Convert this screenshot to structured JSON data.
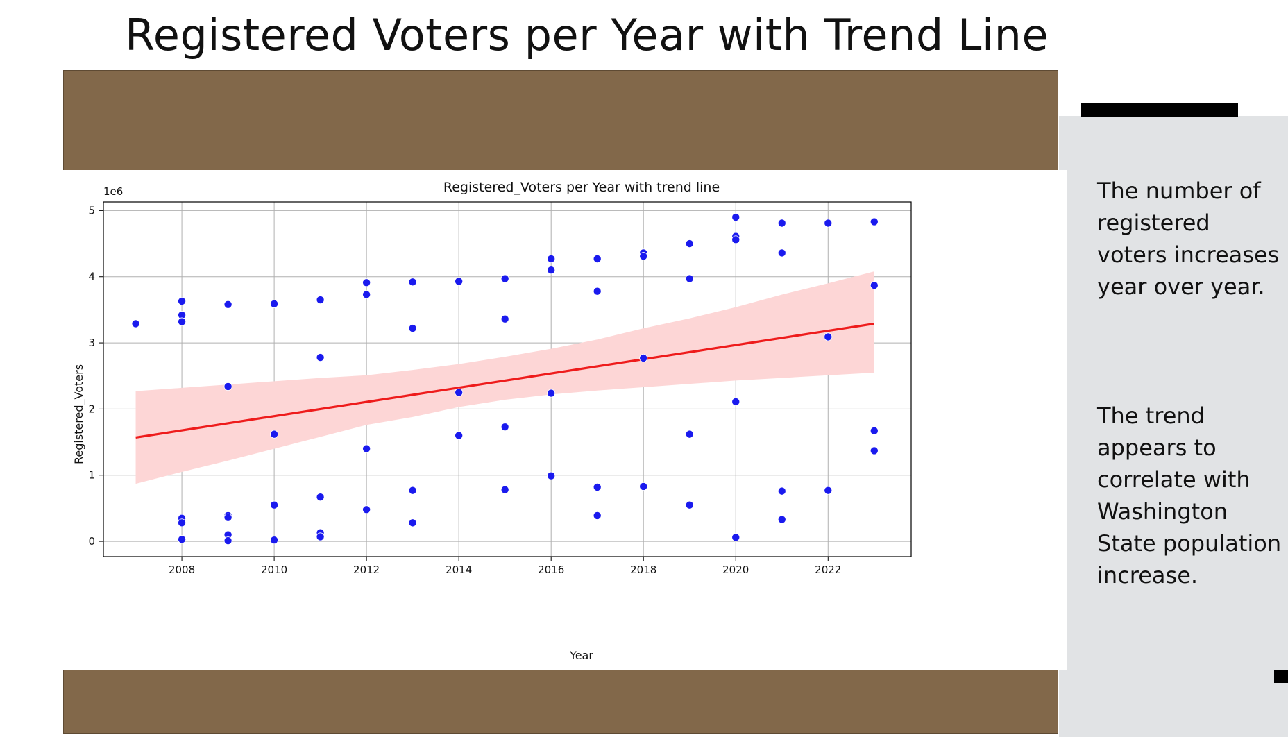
{
  "slide": {
    "title": "Registered Voters per Year with Trend Line",
    "description_1": "The number of registered voters increases year over year.",
    "description_2": "The trend appears to correlate with Washington State population increase."
  },
  "colors": {
    "frame": "#82684a",
    "side_panel": "#e1e3e5",
    "points": "#1a1aee",
    "trend_line": "#ee1c1c",
    "confidence_band": "#fdd6d6"
  },
  "chart_data": {
    "type": "scatter",
    "title": "Registered_Voters per Year with trend line",
    "xlabel": "Year",
    "ylabel": "Registered_Voters",
    "y_scale_label": "1e6",
    "xlim": [
      2006.3,
      2023.8
    ],
    "ylim": [
      -0.23,
      5.13
    ],
    "xticks": [
      2008,
      2010,
      2012,
      2014,
      2016,
      2018,
      2020,
      2022
    ],
    "yticks": [
      0,
      1,
      2,
      3,
      4,
      5
    ],
    "grid": true,
    "series": [
      {
        "name": "Registered_Voters",
        "points": [
          [
            2007,
            3.29
          ],
          [
            2008,
            3.63
          ],
          [
            2008,
            3.42
          ],
          [
            2008,
            3.32
          ],
          [
            2008,
            0.35
          ],
          [
            2008,
            0.28
          ],
          [
            2008,
            0.03
          ],
          [
            2009,
            3.58
          ],
          [
            2009,
            2.34
          ],
          [
            2009,
            0.39
          ],
          [
            2009,
            0.36
          ],
          [
            2009,
            0.1
          ],
          [
            2009,
            0.01
          ],
          [
            2010,
            3.59
          ],
          [
            2010,
            1.62
          ],
          [
            2010,
            0.55
          ],
          [
            2010,
            0.02
          ],
          [
            2011,
            3.65
          ],
          [
            2011,
            2.78
          ],
          [
            2011,
            0.67
          ],
          [
            2011,
            0.13
          ],
          [
            2011,
            0.07
          ],
          [
            2012,
            3.91
          ],
          [
            2012,
            3.73
          ],
          [
            2012,
            1.4
          ],
          [
            2012,
            0.48
          ],
          [
            2013,
            3.92
          ],
          [
            2013,
            3.22
          ],
          [
            2013,
            0.77
          ],
          [
            2013,
            0.28
          ],
          [
            2014,
            3.93
          ],
          [
            2014,
            2.25
          ],
          [
            2014,
            1.6
          ],
          [
            2015,
            3.97
          ],
          [
            2015,
            3.36
          ],
          [
            2015,
            1.73
          ],
          [
            2015,
            0.78
          ],
          [
            2016,
            4.27
          ],
          [
            2016,
            4.1
          ],
          [
            2016,
            2.24
          ],
          [
            2016,
            0.99
          ],
          [
            2017,
            4.27
          ],
          [
            2017,
            3.78
          ],
          [
            2017,
            0.82
          ],
          [
            2017,
            0.39
          ],
          [
            2018,
            4.36
          ],
          [
            2018,
            4.31
          ],
          [
            2018,
            2.77
          ],
          [
            2018,
            0.83
          ],
          [
            2019,
            4.5
          ],
          [
            2019,
            3.97
          ],
          [
            2019,
            1.62
          ],
          [
            2019,
            0.55
          ],
          [
            2020,
            4.9
          ],
          [
            2020,
            4.61
          ],
          [
            2020,
            4.56
          ],
          [
            2020,
            2.11
          ],
          [
            2020,
            0.06
          ],
          [
            2021,
            4.81
          ],
          [
            2021,
            4.36
          ],
          [
            2021,
            0.76
          ],
          [
            2021,
            0.33
          ],
          [
            2022,
            4.81
          ],
          [
            2022,
            3.09
          ],
          [
            2022,
            0.77
          ],
          [
            2023,
            4.83
          ],
          [
            2023,
            3.87
          ],
          [
            2023,
            1.67
          ],
          [
            2023,
            1.37
          ]
        ]
      }
    ],
    "trend_line": {
      "x": [
        2007,
        2023
      ],
      "y": [
        1.57,
        3.29
      ]
    },
    "confidence_band": {
      "x": [
        2007,
        2008,
        2009,
        2010,
        2011,
        2012,
        2013,
        2014,
        2015,
        2016,
        2017,
        2018,
        2019,
        2020,
        2021,
        2022,
        2023
      ],
      "lower": [
        0.87,
        1.05,
        1.22,
        1.4,
        1.58,
        1.76,
        1.88,
        2.03,
        2.14,
        2.22,
        2.28,
        2.33,
        2.38,
        2.43,
        2.47,
        2.51,
        2.55
      ],
      "upper": [
        2.27,
        2.32,
        2.37,
        2.42,
        2.47,
        2.51,
        2.59,
        2.68,
        2.79,
        2.91,
        3.05,
        3.22,
        3.37,
        3.54,
        3.73,
        3.9,
        4.08
      ]
    }
  }
}
